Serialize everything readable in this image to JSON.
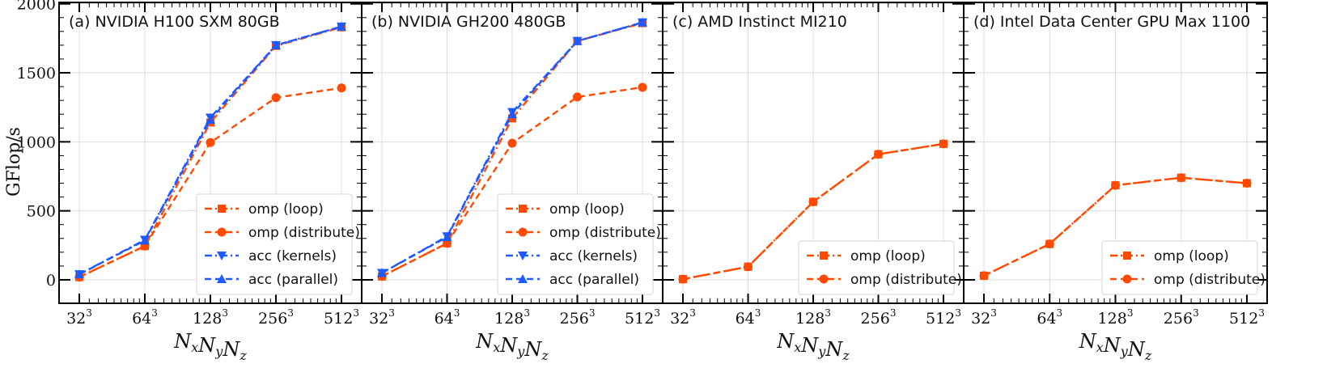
{
  "figure": {
    "ylabel": "GFlop/s"
  },
  "colors": {
    "omp": "#ff4a00",
    "acc": "#1e5aff",
    "grid": "#dddddd",
    "frame": "#000000"
  },
  "chart_data": [
    {
      "type": "line",
      "title": "(a) NVIDIA H100 SXM 80GB",
      "xlabel": "NxNyNz",
      "ylabel": "GFlop/s",
      "x_scale": "log2",
      "x_ticks": [
        "32",
        "64",
        "128",
        "256",
        "512"
      ],
      "x_tick_exponent": "3",
      "y_ticks": [
        "0",
        "500",
        "1000",
        "1500",
        "2000"
      ],
      "ylim": [
        -170,
        2010
      ],
      "legend_position": "lower-right",
      "series": [
        {
          "name": "omp (loop)",
          "color": "#ff4a00",
          "dash": "dashdot",
          "marker": "square",
          "x": [
            32,
            64,
            128,
            256,
            512
          ],
          "values": [
            20,
            245,
            1140,
            1695,
            1830
          ]
        },
        {
          "name": "omp (distribute)",
          "color": "#ff4a00",
          "dash": "dashed",
          "marker": "circle",
          "x": [
            32,
            64,
            128,
            256,
            512
          ],
          "values": [
            20,
            245,
            995,
            1320,
            1390
          ]
        },
        {
          "name": "acc (kernels)",
          "color": "#1e5aff",
          "dash": "dashdot",
          "marker": "triangle-down",
          "x": [
            32,
            64,
            128,
            256,
            512
          ],
          "values": [
            40,
            290,
            1175,
            1700,
            1835
          ]
        },
        {
          "name": "acc (parallel)",
          "color": "#1e5aff",
          "dash": "dashed",
          "marker": "triangle-up",
          "x": [
            32,
            64,
            128,
            256,
            512
          ],
          "values": [
            40,
            285,
            1160,
            1700,
            1835
          ]
        }
      ]
    },
    {
      "type": "line",
      "title": "(b) NVIDIA GH200 480GB",
      "xlabel": "NxNyNz",
      "x_scale": "log2",
      "x_ticks": [
        "32",
        "64",
        "128",
        "256",
        "512"
      ],
      "x_tick_exponent": "3",
      "ylim": [
        -170,
        2010
      ],
      "legend_position": "lower-right",
      "series": [
        {
          "name": "omp (loop)",
          "color": "#ff4a00",
          "dash": "dashdot",
          "marker": "square",
          "x": [
            32,
            64,
            128,
            256,
            512
          ],
          "values": [
            25,
            265,
            1170,
            1730,
            1860
          ]
        },
        {
          "name": "omp (distribute)",
          "color": "#ff4a00",
          "dash": "dashed",
          "marker": "circle",
          "x": [
            32,
            64,
            128,
            256,
            512
          ],
          "values": [
            25,
            265,
            990,
            1325,
            1395
          ]
        },
        {
          "name": "acc (kernels)",
          "color": "#1e5aff",
          "dash": "dashdot",
          "marker": "triangle-down",
          "x": [
            32,
            64,
            128,
            256,
            512
          ],
          "values": [
            50,
            315,
            1215,
            1730,
            1865
          ]
        },
        {
          "name": "acc (parallel)",
          "color": "#1e5aff",
          "dash": "dashed",
          "marker": "triangle-up",
          "x": [
            32,
            64,
            128,
            256,
            512
          ],
          "values": [
            50,
            310,
            1200,
            1730,
            1865
          ]
        }
      ]
    },
    {
      "type": "line",
      "title": "(c) AMD Instinct MI210",
      "xlabel": "NxNyNz",
      "x_scale": "log2",
      "x_ticks": [
        "32",
        "64",
        "128",
        "256",
        "512"
      ],
      "x_tick_exponent": "3",
      "ylim": [
        -170,
        2010
      ],
      "legend_position": "lower-right",
      "series": [
        {
          "name": "omp (loop)",
          "color": "#ff4a00",
          "dash": "dashdot",
          "marker": "square",
          "x": [
            32,
            64,
            128,
            256,
            512
          ],
          "values": [
            5,
            95,
            565,
            910,
            985
          ]
        },
        {
          "name": "omp (distribute)",
          "color": "#ff4a00",
          "dash": "dashed",
          "marker": "circle",
          "x": [
            32,
            64,
            128,
            256,
            512
          ],
          "values": [
            5,
            95,
            565,
            910,
            985
          ]
        }
      ]
    },
    {
      "type": "line",
      "title": "(d) Intel Data Center GPU Max 1100",
      "xlabel": "NxNyNz",
      "x_scale": "log2",
      "x_ticks": [
        "32",
        "64",
        "128",
        "256",
        "512"
      ],
      "x_tick_exponent": "3",
      "ylim": [
        -170,
        2010
      ],
      "legend_position": "lower-right",
      "series": [
        {
          "name": "omp (loop)",
          "color": "#ff4a00",
          "dash": "dashdot",
          "marker": "square",
          "x": [
            32,
            64,
            128,
            256,
            512
          ],
          "values": [
            30,
            260,
            685,
            740,
            700
          ]
        },
        {
          "name": "omp (distribute)",
          "color": "#ff4a00",
          "dash": "dashed",
          "marker": "circle",
          "x": [
            32,
            64,
            128,
            256,
            512
          ],
          "values": [
            30,
            260,
            685,
            740,
            700
          ]
        }
      ]
    }
  ]
}
